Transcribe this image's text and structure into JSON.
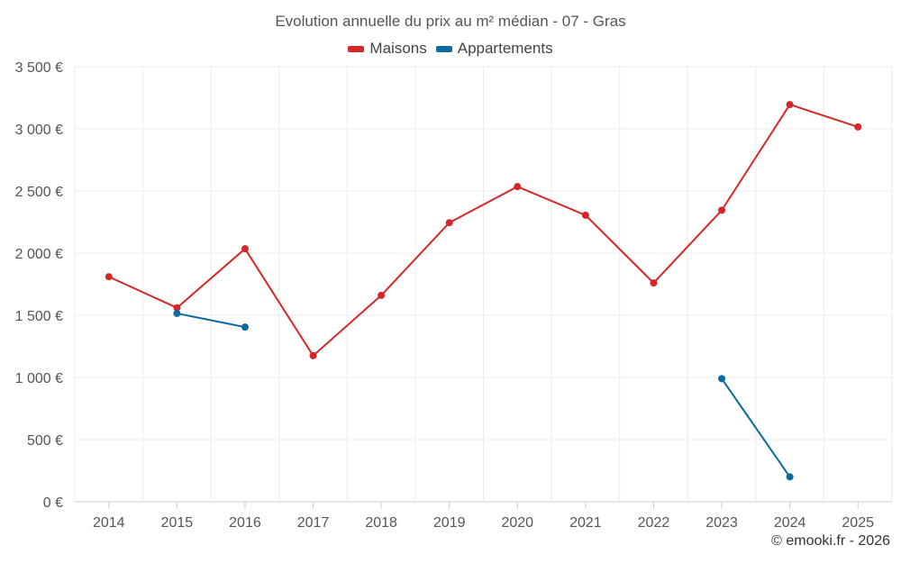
{
  "chart_data": {
    "type": "line",
    "title": "Evolution annuelle du prix au m² médian - 07 - Gras",
    "categories": [
      "2014",
      "2015",
      "2016",
      "2017",
      "2018",
      "2019",
      "2020",
      "2021",
      "2022",
      "2023",
      "2024",
      "2025"
    ],
    "series": [
      {
        "name": "Maisons",
        "color": "#d62728",
        "values": [
          1810,
          1560,
          2035,
          1175,
          1660,
          2245,
          2535,
          2305,
          1760,
          2345,
          3195,
          3015
        ]
      },
      {
        "name": "Appartements",
        "color": "#0b6a9e",
        "values": [
          null,
          1515,
          1405,
          null,
          null,
          null,
          null,
          null,
          null,
          990,
          200,
          null
        ]
      }
    ],
    "ylim": [
      0,
      3500
    ],
    "yticks": [
      0,
      500,
      1000,
      1500,
      2000,
      2500,
      3000,
      3500
    ],
    "ytick_labels": [
      "0 €",
      "500 €",
      "1 000 €",
      "1 500 €",
      "2 000 €",
      "2 500 €",
      "3 000 €",
      "3 500 €"
    ],
    "xlabel": "",
    "ylabel": "",
    "grid": true,
    "legend_position": "top-center"
  },
  "credit": "© emooki.fr - 2026"
}
